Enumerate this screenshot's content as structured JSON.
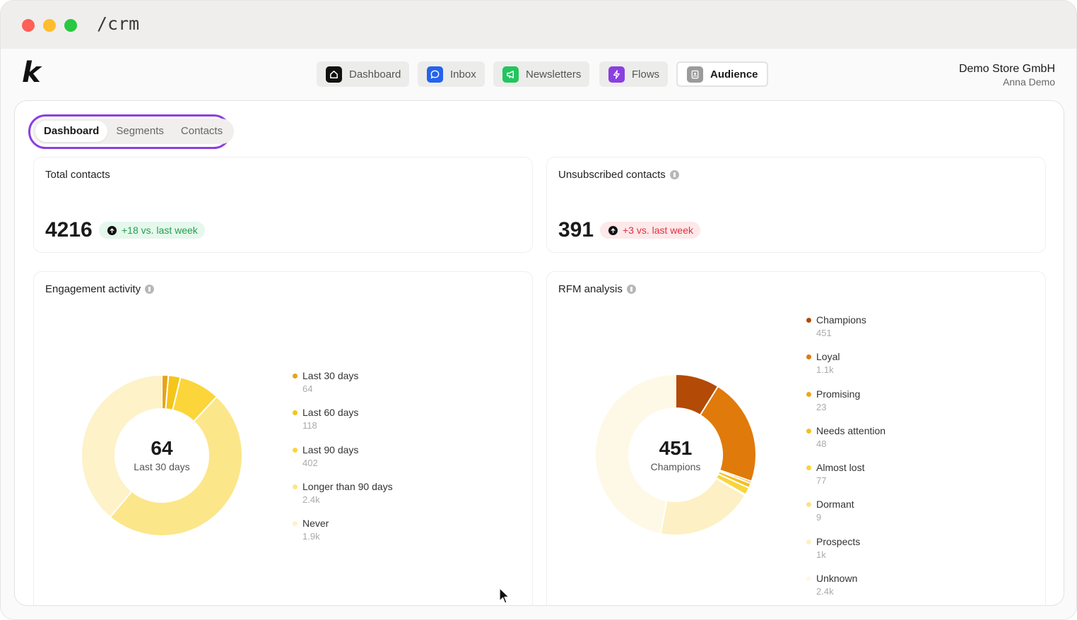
{
  "window": {
    "path": "/crm"
  },
  "logo": {
    "letter": "k"
  },
  "nav": [
    {
      "label": "Dashboard",
      "icon": "home-icon",
      "color": "#111111",
      "active": false
    },
    {
      "label": "Inbox",
      "icon": "chat-bubble-icon",
      "color": "#2563eb",
      "active": false
    },
    {
      "label": "Newsletters",
      "icon": "megaphone-icon",
      "color": "#22c55e",
      "active": false
    },
    {
      "label": "Flows",
      "icon": "lightning-icon",
      "color": "#8b3fe0",
      "active": false
    },
    {
      "label": "Audience",
      "icon": "contact-card-icon",
      "color": "#9b9b9b",
      "active": true
    }
  ],
  "account": {
    "store": "Demo Store GmbH",
    "user": "Anna Demo"
  },
  "subtabs": [
    {
      "label": "Dashboard",
      "active": true
    },
    {
      "label": "Segments",
      "active": false
    },
    {
      "label": "Contacts",
      "active": false
    }
  ],
  "total_contacts": {
    "title": "Total contacts",
    "value": "4216",
    "delta": "+18 vs. last week"
  },
  "unsubscribed": {
    "title": "Unsubscribed contacts",
    "value": "391",
    "delta": "+3 vs. last week"
  },
  "engagement": {
    "title": "Engagement activity",
    "center_value": "64",
    "center_label": "Last 30 days",
    "items": [
      {
        "label": "Last 30 days",
        "value": "64",
        "count": 64,
        "color": "#e8a317"
      },
      {
        "label": "Last 60 days",
        "value": "118",
        "count": 118,
        "color": "#f5c518"
      },
      {
        "label": "Last 90 days",
        "value": "402",
        "count": 402,
        "color": "#fbd53a"
      },
      {
        "label": "Longer than 90 days",
        "value": "2.4k",
        "count": 2400,
        "color": "#fce68a"
      },
      {
        "label": "Never",
        "value": "1.9k",
        "count": 1900,
        "color": "#fdf2c8"
      }
    ]
  },
  "rfm": {
    "title": "RFM analysis",
    "center_value": "451",
    "center_label": "Champions",
    "items": [
      {
        "label": "Champions",
        "value": "451",
        "count": 451,
        "color": "#b34a06"
      },
      {
        "label": "Loyal",
        "value": "1.1k",
        "count": 1100,
        "color": "#e07a0b"
      },
      {
        "label": "Promising",
        "value": "23",
        "count": 23,
        "color": "#f0a51a"
      },
      {
        "label": "Needs attention",
        "value": "48",
        "count": 48,
        "color": "#f5bf1d"
      },
      {
        "label": "Almost lost",
        "value": "77",
        "count": 77,
        "color": "#f8d53b"
      },
      {
        "label": "Dormant",
        "value": "9",
        "count": 9,
        "color": "#fae38a"
      },
      {
        "label": "Prospects",
        "value": "1k",
        "count": 1000,
        "color": "#fdf0c4"
      },
      {
        "label": "Unknown",
        "value": "2.4k",
        "count": 2400,
        "color": "#fef8e6"
      }
    ]
  }
}
